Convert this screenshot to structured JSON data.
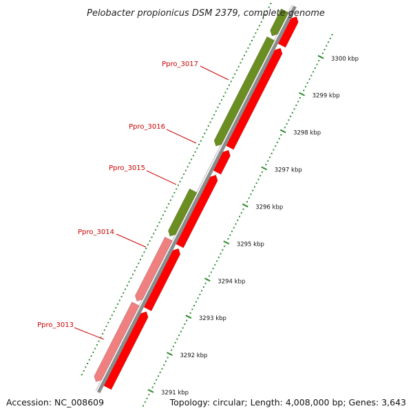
{
  "title": "Pelobacter propionicus DSM 2379, complete genome",
  "footer": {
    "accession": "Accession: NC_008609",
    "topology": "Topology: circular; Length: 4,008,000 bp; Genes: 3,643"
  },
  "colors": {
    "forward_cds": "#ff0000",
    "reverse_cds_green": "#6b8e23",
    "reverse_cds_pink": "#f08080",
    "tick": "#2e8b2e",
    "gene_label": "#cc0000",
    "backbone": "#888888"
  },
  "gene_labels": [
    "Ppro_3017",
    "Ppro_3016",
    "Ppro_3015",
    "Ppro_3014",
    "Ppro_3013"
  ],
  "ruler": {
    "unit": "kbp",
    "ticks": [
      "3291 kbp",
      "3292 kbp",
      "3293 kbp",
      "3294 kbp",
      "3295 kbp",
      "3296 kbp",
      "3297 kbp",
      "3298 kbp",
      "3299 kbp",
      "3300 kbp"
    ]
  },
  "forward_genes": [
    {
      "start": 3290.6,
      "end": 3292.65
    },
    {
      "start": 3292.72,
      "end": 3294.35
    },
    {
      "start": 3294.42,
      "end": 3296.33
    },
    {
      "start": 3296.4,
      "end": 3297.0
    },
    {
      "start": 3297.07,
      "end": 3299.75
    },
    {
      "start": 3299.82,
      "end": 3300.6
    }
  ],
  "reverse_genes": [
    {
      "start": 3290.6,
      "end": 3292.7,
      "color": "pink"
    },
    {
      "start": 3292.77,
      "end": 3294.45,
      "color": "pink"
    },
    {
      "start": 3294.52,
      "end": 3295.75,
      "color": "green"
    },
    {
      "start": 3296.95,
      "end": 3299.85,
      "color": "green"
    },
    {
      "start": 3299.92,
      "end": 3300.6,
      "color": "green"
    }
  ]
}
